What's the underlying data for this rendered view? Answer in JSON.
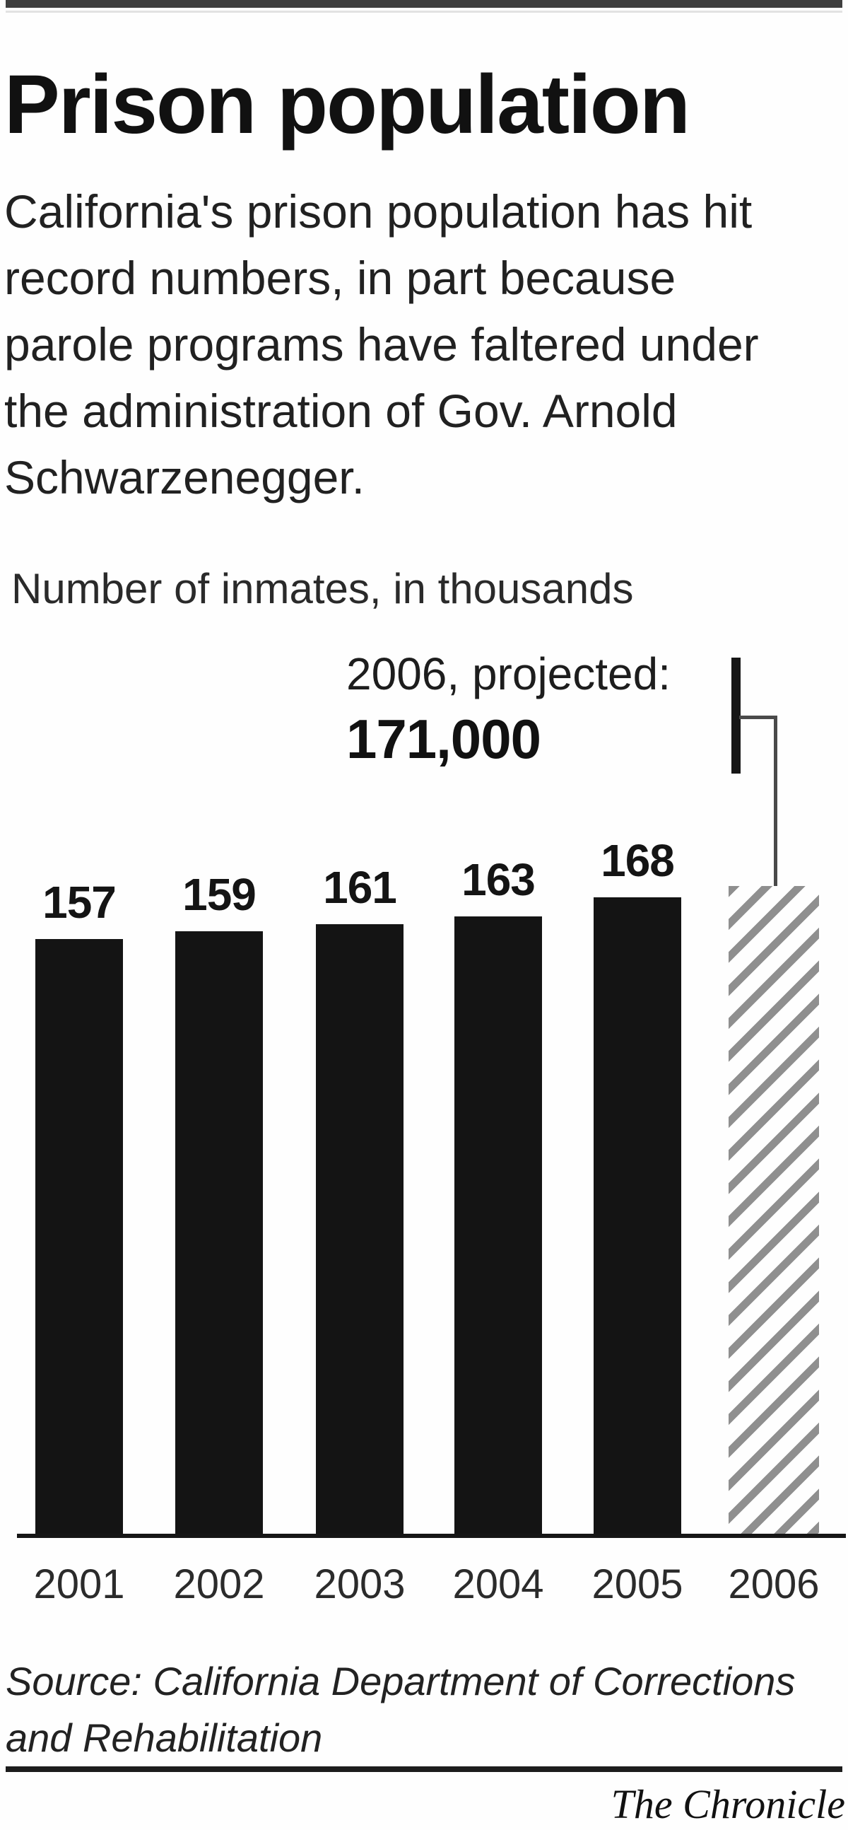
{
  "header": {
    "title": "Prison population"
  },
  "intro_lines": [
    "California's prison population has hit",
    "record numbers, in part because",
    "parole programs have faltered under",
    "the administration of Gov. Arnold",
    "Schwarzenegger."
  ],
  "chart_data": {
    "type": "bar",
    "title": "Prison population",
    "ylabel": "Number of inmates, in thousands",
    "xlabel": "",
    "categories": [
      "2001",
      "2002",
      "2003",
      "2004",
      "2005",
      "2006"
    ],
    "values": [
      157,
      159,
      161,
      163,
      168,
      171
    ],
    "value_unit": "thousands of inmates",
    "projected_index": 5,
    "callout": {
      "line1": "2006, projected:",
      "value_label": "171,000"
    },
    "bar_color": "#141414",
    "hatch_color": "#8f8f8f",
    "grid": false,
    "legend": false,
    "ylim": [
      0,
      175
    ]
  },
  "source": {
    "line1": "Source: California Department of Corrections",
    "line2": "and Rehabilitation"
  },
  "credit": "The Chronicle",
  "colors": {
    "top_bar": "#3f3f3f",
    "rule": "#1c1c1c",
    "text": "#1a1a1a"
  }
}
